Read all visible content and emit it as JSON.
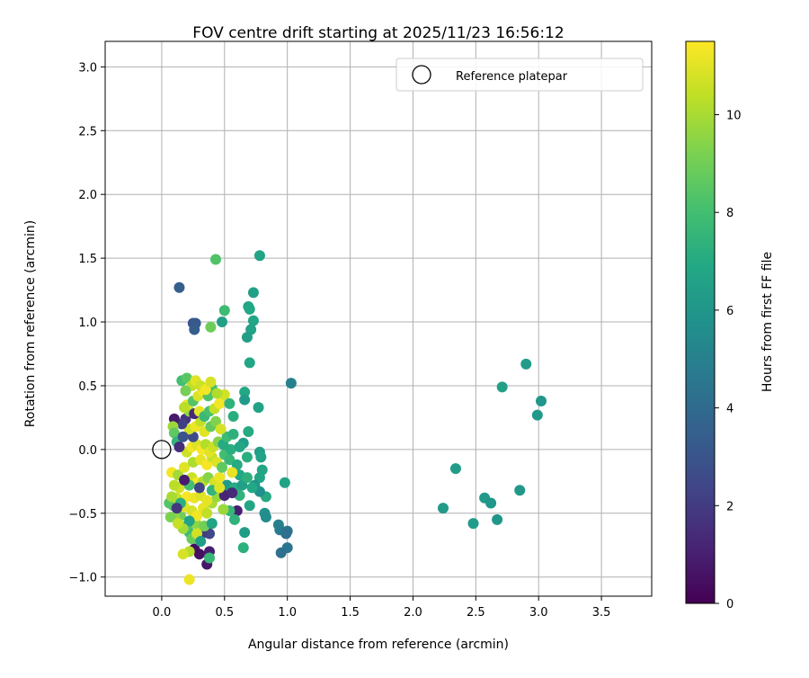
{
  "chart_data": {
    "type": "scatter",
    "title": "FOV centre drift starting at 2025/11/23 16:56:12",
    "xlabel": "Angular distance from reference (arcmin)",
    "ylabel": "Rotation from reference (arcmin)",
    "xlim": [
      -0.45,
      3.9
    ],
    "ylim": [
      -1.15,
      3.2
    ],
    "xticks": [
      "0.0",
      "0.5",
      "1.0",
      "1.5",
      "2.0",
      "2.5",
      "3.0",
      "3.5"
    ],
    "yticks": [
      "−1.0",
      "−0.5",
      "0.0",
      "0.5",
      "1.0",
      "1.5",
      "2.0",
      "2.5",
      "3.0"
    ],
    "grid": true,
    "legend": {
      "position": "top-right",
      "entries": [
        "Reference platepar"
      ]
    },
    "reference_point": {
      "x": 0.0,
      "y": 0.0
    },
    "colorbar": {
      "label": "Hours from first FF file",
      "range": [
        0,
        11.5
      ],
      "ticks": [
        "0",
        "2",
        "4",
        "6",
        "8",
        "10"
      ],
      "colormap": "viridis"
    },
    "points": [
      {
        "x": 0.14,
        "y": 1.27,
        "h": 3.5
      },
      {
        "x": 0.25,
        "y": 0.99,
        "h": 3.0
      },
      {
        "x": 0.27,
        "y": 0.99,
        "h": 3.2
      },
      {
        "x": 0.26,
        "y": 0.94,
        "h": 3.4
      },
      {
        "x": 0.43,
        "y": 1.49,
        "h": 8.3
      },
      {
        "x": 0.39,
        "y": 0.96,
        "h": 8.9
      },
      {
        "x": 0.48,
        "y": 1.0,
        "h": 6.5
      },
      {
        "x": 0.5,
        "y": 1.09,
        "h": 7.8
      },
      {
        "x": 0.78,
        "y": 1.52,
        "h": 6.7
      },
      {
        "x": 0.73,
        "y": 1.23,
        "h": 6.5
      },
      {
        "x": 0.69,
        "y": 1.12,
        "h": 6.7
      },
      {
        "x": 0.7,
        "y": 1.1,
        "h": 6.9
      },
      {
        "x": 0.73,
        "y": 1.01,
        "h": 6.8
      },
      {
        "x": 0.71,
        "y": 0.94,
        "h": 6.6
      },
      {
        "x": 0.68,
        "y": 0.88,
        "h": 6.4
      },
      {
        "x": 0.7,
        "y": 0.68,
        "h": 6.8
      },
      {
        "x": 1.03,
        "y": 0.52,
        "h": 5.0
      },
      {
        "x": 0.66,
        "y": 0.45,
        "h": 6.9
      },
      {
        "x": 0.66,
        "y": 0.39,
        "h": 6.2
      },
      {
        "x": 0.77,
        "y": 0.33,
        "h": 6.6
      },
      {
        "x": 0.57,
        "y": 0.26,
        "h": 7.2
      },
      {
        "x": 0.69,
        "y": 0.14,
        "h": 7.0
      },
      {
        "x": 0.65,
        "y": 0.05,
        "h": 6.3
      },
      {
        "x": 0.78,
        "y": -0.02,
        "h": 6.4
      },
      {
        "x": 0.79,
        "y": -0.06,
        "h": 6.6
      },
      {
        "x": 0.68,
        "y": -0.06,
        "h": 7.2
      },
      {
        "x": 0.8,
        "y": -0.16,
        "h": 6.8
      },
      {
        "x": 0.78,
        "y": -0.22,
        "h": 6.7
      },
      {
        "x": 0.83,
        "y": -0.37,
        "h": 7.0
      },
      {
        "x": 0.78,
        "y": -0.33,
        "h": 5.7
      },
      {
        "x": 0.74,
        "y": -0.28,
        "h": 6.0
      },
      {
        "x": 0.98,
        "y": -0.26,
        "h": 6.6
      },
      {
        "x": 0.82,
        "y": -0.5,
        "h": 5.8
      },
      {
        "x": 0.83,
        "y": -0.53,
        "h": 5.5
      },
      {
        "x": 0.93,
        "y": -0.59,
        "h": 5.0
      },
      {
        "x": 0.94,
        "y": -0.63,
        "h": 4.8
      },
      {
        "x": 0.99,
        "y": -0.65,
        "h": 4.5
      },
      {
        "x": 1.0,
        "y": -0.64,
        "h": 4.4
      },
      {
        "x": 0.99,
        "y": -0.66,
        "h": 4.2
      },
      {
        "x": 1.0,
        "y": -0.77,
        "h": 4.5
      },
      {
        "x": 0.95,
        "y": -0.81,
        "h": 4.3
      },
      {
        "x": 0.66,
        "y": -0.65,
        "h": 6.3
      },
      {
        "x": 0.65,
        "y": -0.77,
        "h": 7.3
      },
      {
        "x": 0.7,
        "y": -0.44,
        "h": 6.8
      },
      {
        "x": 0.6,
        "y": -0.48,
        "h": 1.0
      },
      {
        "x": 0.58,
        "y": -0.55,
        "h": 7.4
      },
      {
        "x": 0.54,
        "y": -0.48,
        "h": 7.6
      },
      {
        "x": 0.49,
        "y": -0.47,
        "h": 9.8
      },
      {
        "x": 0.38,
        "y": -0.66,
        "h": 2.5
      },
      {
        "x": 0.38,
        "y": -0.8,
        "h": 1.0
      },
      {
        "x": 0.36,
        "y": -0.9,
        "h": 0.7
      },
      {
        "x": 0.38,
        "y": -0.85,
        "h": 7.6
      },
      {
        "x": 0.3,
        "y": -0.82,
        "h": 0.5
      },
      {
        "x": 0.26,
        "y": -0.78,
        "h": 0.4
      },
      {
        "x": 0.22,
        "y": -0.8,
        "h": 10.2
      },
      {
        "x": 0.17,
        "y": -0.82,
        "h": 10.8
      },
      {
        "x": 0.22,
        "y": -1.02,
        "h": 11.2
      },
      {
        "x": 0.32,
        "y": -0.66,
        "h": 2.0
      },
      {
        "x": 0.3,
        "y": -0.6,
        "h": 10.5
      },
      {
        "x": 0.27,
        "y": -0.58,
        "h": 9.5
      },
      {
        "x": 0.22,
        "y": -0.65,
        "h": 7.8
      },
      {
        "x": 0.2,
        "y": -0.6,
        "h": 8.2
      },
      {
        "x": 0.15,
        "y": -0.52,
        "h": 9.0
      },
      {
        "x": 0.1,
        "y": -0.53,
        "h": 9.6
      },
      {
        "x": 0.07,
        "y": -0.53,
        "h": 9.2
      },
      {
        "x": 0.09,
        "y": -0.44,
        "h": 8.7
      },
      {
        "x": 0.06,
        "y": -0.42,
        "h": 8.4
      },
      {
        "x": 0.12,
        "y": -0.38,
        "h": 10.6
      },
      {
        "x": 0.18,
        "y": -0.45,
        "h": 11.0
      },
      {
        "x": 0.24,
        "y": -0.48,
        "h": 10.8
      },
      {
        "x": 0.28,
        "y": -0.52,
        "h": 11.3
      },
      {
        "x": 0.33,
        "y": -0.46,
        "h": 11.1
      },
      {
        "x": 0.36,
        "y": -0.5,
        "h": 10.4
      },
      {
        "x": 0.4,
        "y": -0.42,
        "h": 10.0
      },
      {
        "x": 0.44,
        "y": -0.37,
        "h": 9.7
      },
      {
        "x": 0.2,
        "y": -0.37,
        "h": 11.4
      },
      {
        "x": 0.26,
        "y": -0.38,
        "h": 11.2
      },
      {
        "x": 0.31,
        "y": -0.36,
        "h": 10.9
      },
      {
        "x": 0.14,
        "y": -0.3,
        "h": 10.7
      },
      {
        "x": 0.1,
        "y": -0.28,
        "h": 10.3
      },
      {
        "x": 0.08,
        "y": -0.18,
        "h": 11.3
      },
      {
        "x": 0.13,
        "y": -0.2,
        "h": 9.9
      },
      {
        "x": 0.18,
        "y": -0.14,
        "h": 11.0
      },
      {
        "x": 0.24,
        "y": -0.22,
        "h": 10.6
      },
      {
        "x": 0.28,
        "y": -0.26,
        "h": 11.4
      },
      {
        "x": 0.33,
        "y": -0.25,
        "h": 10.2
      },
      {
        "x": 0.37,
        "y": -0.22,
        "h": 9.4
      },
      {
        "x": 0.42,
        "y": -0.26,
        "h": 10.8
      },
      {
        "x": 0.46,
        "y": -0.22,
        "h": 11.2
      },
      {
        "x": 0.4,
        "y": -0.32,
        "h": 7.5
      },
      {
        "x": 0.3,
        "y": -0.3,
        "h": 2.3
      },
      {
        "x": 0.22,
        "y": -0.28,
        "h": 8.0
      },
      {
        "x": 0.18,
        "y": -0.24,
        "h": 0.9
      },
      {
        "x": 0.25,
        "y": -0.1,
        "h": 10.1
      },
      {
        "x": 0.31,
        "y": -0.08,
        "h": 11.1
      },
      {
        "x": 0.36,
        "y": -0.12,
        "h": 11.4
      },
      {
        "x": 0.4,
        "y": -0.06,
        "h": 10.5
      },
      {
        "x": 0.44,
        "y": -0.1,
        "h": 10.9
      },
      {
        "x": 0.48,
        "y": -0.14,
        "h": 8.6
      },
      {
        "x": 0.5,
        "y": -0.04,
        "h": 8.0
      },
      {
        "x": 0.54,
        "y": -0.08,
        "h": 7.6
      },
      {
        "x": 0.55,
        "y": 0.0,
        "h": 7.2
      },
      {
        "x": 0.6,
        "y": -0.12,
        "h": 7.0
      },
      {
        "x": 0.62,
        "y": -0.2,
        "h": 6.8
      },
      {
        "x": 0.56,
        "y": -0.18,
        "h": 11.1
      },
      {
        "x": 0.52,
        "y": -0.28,
        "h": 6.2
      },
      {
        "x": 0.58,
        "y": -0.3,
        "h": 7.1
      },
      {
        "x": 0.64,
        "y": -0.28,
        "h": 6.5
      },
      {
        "x": 0.68,
        "y": -0.22,
        "h": 7.3
      },
      {
        "x": 0.72,
        "y": -0.3,
        "h": 6.9
      },
      {
        "x": 0.62,
        "y": -0.36,
        "h": 7.4
      },
      {
        "x": 0.56,
        "y": -0.34,
        "h": 1.4
      },
      {
        "x": 0.5,
        "y": -0.36,
        "h": 1.2
      },
      {
        "x": 0.46,
        "y": -0.3,
        "h": 11.0
      },
      {
        "x": 0.2,
        "y": -0.02,
        "h": 10.6
      },
      {
        "x": 0.24,
        "y": 0.02,
        "h": 11.3
      },
      {
        "x": 0.28,
        "y": 0.04,
        "h": 10.9
      },
      {
        "x": 0.32,
        "y": 0.0,
        "h": 11.4
      },
      {
        "x": 0.35,
        "y": 0.04,
        "h": 10.2
      },
      {
        "x": 0.38,
        "y": -0.02,
        "h": 11.0
      },
      {
        "x": 0.41,
        "y": 0.02,
        "h": 10.6
      },
      {
        "x": 0.45,
        "y": 0.06,
        "h": 9.4
      },
      {
        "x": 0.49,
        "y": 0.04,
        "h": 7.0
      },
      {
        "x": 0.52,
        "y": 0.1,
        "h": 7.8
      },
      {
        "x": 0.57,
        "y": 0.12,
        "h": 7.3
      },
      {
        "x": 0.62,
        "y": 0.02,
        "h": 6.8
      },
      {
        "x": 0.25,
        "y": 0.1,
        "h": 2.6
      },
      {
        "x": 0.22,
        "y": 0.16,
        "h": 10.7
      },
      {
        "x": 0.27,
        "y": 0.18,
        "h": 11.2
      },
      {
        "x": 0.31,
        "y": 0.22,
        "h": 10.4
      },
      {
        "x": 0.34,
        "y": 0.14,
        "h": 11.0
      },
      {
        "x": 0.39,
        "y": 0.18,
        "h": 8.7
      },
      {
        "x": 0.43,
        "y": 0.22,
        "h": 9.3
      },
      {
        "x": 0.47,
        "y": 0.16,
        "h": 10.8
      },
      {
        "x": 0.19,
        "y": 0.24,
        "h": 1.7
      },
      {
        "x": 0.16,
        "y": 0.2,
        "h": 2.1
      },
      {
        "x": 0.1,
        "y": 0.24,
        "h": 0.8
      },
      {
        "x": 0.09,
        "y": 0.18,
        "h": 9.8
      },
      {
        "x": 0.1,
        "y": 0.13,
        "h": 8.6
      },
      {
        "x": 0.12,
        "y": 0.06,
        "h": 7.5
      },
      {
        "x": 0.17,
        "y": 0.1,
        "h": 3.0
      },
      {
        "x": 0.14,
        "y": 0.02,
        "h": 1.5
      },
      {
        "x": 0.22,
        "y": 0.3,
        "h": 9.6
      },
      {
        "x": 0.26,
        "y": 0.28,
        "h": 1.3
      },
      {
        "x": 0.3,
        "y": 0.3,
        "h": 11.1
      },
      {
        "x": 0.34,
        "y": 0.26,
        "h": 7.7
      },
      {
        "x": 0.38,
        "y": 0.3,
        "h": 8.1
      },
      {
        "x": 0.42,
        "y": 0.32,
        "h": 10.5
      },
      {
        "x": 0.46,
        "y": 0.36,
        "h": 11.3
      },
      {
        "x": 0.5,
        "y": 0.43,
        "h": 10.7
      },
      {
        "x": 0.54,
        "y": 0.36,
        "h": 7.4
      },
      {
        "x": 0.2,
        "y": 0.35,
        "h": 11.2
      },
      {
        "x": 0.18,
        "y": 0.33,
        "h": 10.3
      },
      {
        "x": 0.25,
        "y": 0.38,
        "h": 8.4
      },
      {
        "x": 0.29,
        "y": 0.42,
        "h": 10.9
      },
      {
        "x": 0.33,
        "y": 0.46,
        "h": 11.4
      },
      {
        "x": 0.37,
        "y": 0.42,
        "h": 8.3
      },
      {
        "x": 0.4,
        "y": 0.48,
        "h": 7.9
      },
      {
        "x": 0.44,
        "y": 0.44,
        "h": 10.1
      },
      {
        "x": 0.16,
        "y": 0.54,
        "h": 8.0
      },
      {
        "x": 0.2,
        "y": 0.56,
        "h": 8.5
      },
      {
        "x": 0.24,
        "y": 0.5,
        "h": 10.4
      },
      {
        "x": 0.27,
        "y": 0.54,
        "h": 11.0
      },
      {
        "x": 0.31,
        "y": 0.5,
        "h": 10.6
      },
      {
        "x": 0.35,
        "y": 0.47,
        "h": 11.3
      },
      {
        "x": 0.39,
        "y": 0.53,
        "h": 10.8
      },
      {
        "x": 0.19,
        "y": 0.46,
        "h": 9.1
      },
      {
        "x": 0.22,
        "y": -0.56,
        "h": 6.6
      },
      {
        "x": 0.17,
        "y": -0.62,
        "h": 9.9
      },
      {
        "x": 0.13,
        "y": -0.58,
        "h": 10.5
      },
      {
        "x": 0.24,
        "y": -0.7,
        "h": 8.8
      },
      {
        "x": 0.28,
        "y": -0.66,
        "h": 10.7
      },
      {
        "x": 0.31,
        "y": -0.72,
        "h": 6.4
      },
      {
        "x": 0.34,
        "y": -0.6,
        "h": 9.0
      },
      {
        "x": 0.4,
        "y": -0.58,
        "h": 6.7
      },
      {
        "x": 0.36,
        "y": -0.4,
        "h": 11.1
      },
      {
        "x": 0.15,
        "y": -0.42,
        "h": 7.2
      },
      {
        "x": 0.12,
        "y": -0.46,
        "h": 1.8
      },
      {
        "x": 0.08,
        "y": -0.37,
        "h": 10.0
      },
      {
        "x": 2.24,
        "y": -0.46,
        "h": 6.2
      },
      {
        "x": 2.34,
        "y": -0.15,
        "h": 6.3
      },
      {
        "x": 2.48,
        "y": -0.58,
        "h": 6.3
      },
      {
        "x": 2.57,
        "y": -0.38,
        "h": 6.2
      },
      {
        "x": 2.62,
        "y": -0.42,
        "h": 6.0
      },
      {
        "x": 2.67,
        "y": -0.55,
        "h": 6.0
      },
      {
        "x": 2.71,
        "y": 0.49,
        "h": 6.5
      },
      {
        "x": 2.85,
        "y": -0.32,
        "h": 6.1
      },
      {
        "x": 2.9,
        "y": 0.67,
        "h": 6.3
      },
      {
        "x": 2.99,
        "y": 0.27,
        "h": 6.1
      },
      {
        "x": 3.02,
        "y": 0.38,
        "h": 6.0
      }
    ]
  }
}
